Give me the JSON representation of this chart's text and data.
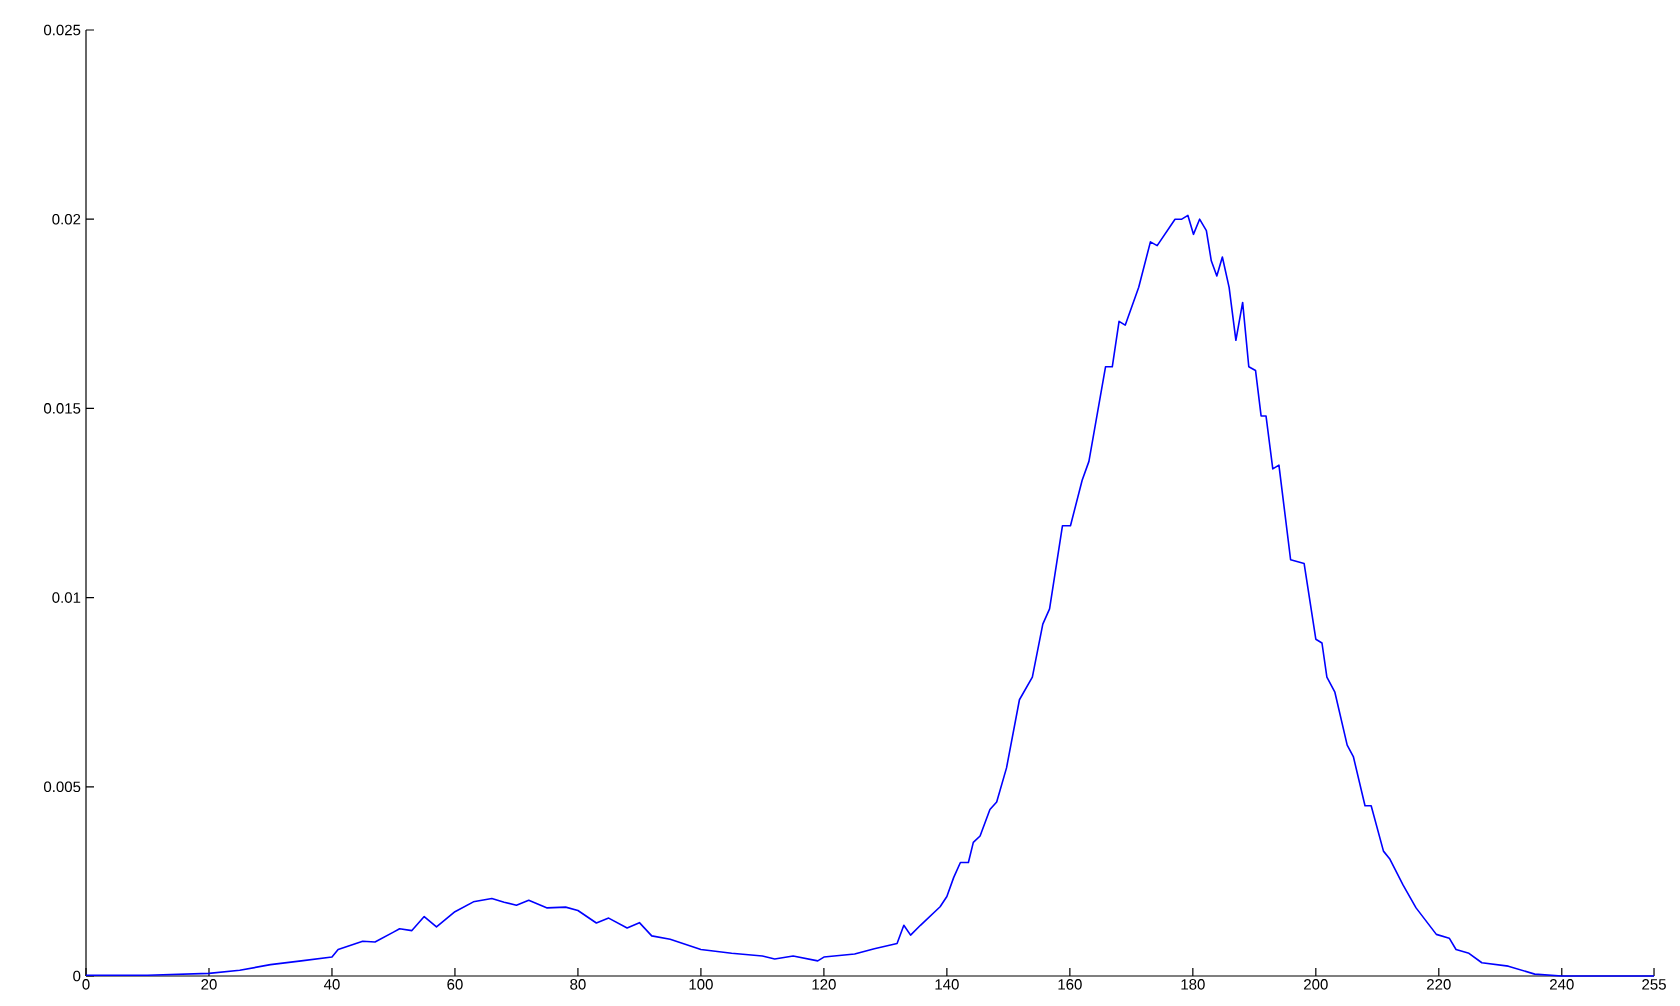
{
  "chart_data": {
    "type": "line",
    "x": [
      0,
      10,
      20,
      25,
      30,
      35,
      40,
      41,
      45,
      47,
      50,
      51,
      53,
      55,
      57,
      60,
      63,
      66,
      68,
      70,
      72,
      75,
      78,
      80,
      83,
      85,
      88,
      90,
      92,
      95,
      100,
      105,
      110,
      112,
      115,
      119,
      120,
      125,
      128.2,
      131.9,
      133,
      134.1,
      135.7,
      138.9,
      140,
      141.1,
      142.2,
      143.5,
      144.3,
      145.4,
      147,
      148.1,
      149.7,
      151.8,
      153.9,
      155.6,
      156.7,
      158.8,
      160.1,
      162,
      163.1,
      165.8,
      166.9,
      168,
      169,
      171.2,
      173.1,
      174.2,
      177.1,
      178.2,
      179.2,
      180.1,
      181.1,
      182.2,
      183,
      183.9,
      184.8,
      185.9,
      187,
      188.1,
      189.1,
      190.2,
      191.1,
      191.9,
      193,
      194,
      195.9,
      198.1,
      200,
      201,
      201.8,
      203.1,
      205.1,
      206.1,
      208,
      209,
      211,
      212,
      214.2,
      216.3,
      219.6,
      221.7,
      222.8,
      224.9,
      227,
      231.3,
      235.6,
      240,
      255
    ],
    "values": [
      2e-05,
      2e-05,
      7e-05,
      0.00015,
      0.0003,
      0.0004,
      0.0005,
      0.0007,
      0.00092,
      0.0009,
      0.00116,
      0.00125,
      0.0012,
      0.00157,
      0.0013,
      0.0017,
      0.00196,
      0.00205,
      0.00195,
      0.00187,
      0.002,
      0.0018,
      0.00182,
      0.00173,
      0.0014,
      0.00153,
      0.00127,
      0.00141,
      0.00106,
      0.00097,
      0.0007,
      0.0006,
      0.00053,
      0.00045,
      0.00053,
      0.0004,
      0.0005,
      0.00058,
      0.00072,
      0.00086,
      0.00134,
      0.00108,
      0.00134,
      0.00183,
      0.0021,
      0.0026,
      0.003,
      0.003,
      0.00353,
      0.0037,
      0.0044,
      0.0046,
      0.0055,
      0.0073,
      0.0079,
      0.0093,
      0.0097,
      0.0119,
      0.0119,
      0.0131,
      0.0136,
      0.0161,
      0.0161,
      0.0173,
      0.0172,
      0.0182,
      0.0194,
      0.0193,
      0.02,
      0.02,
      0.0201,
      0.0196,
      0.02,
      0.0197,
      0.0189,
      0.0185,
      0.019,
      0.0182,
      0.0168,
      0.0178,
      0.0161,
      0.016,
      0.0148,
      0.0148,
      0.0134,
      0.0135,
      0.011,
      0.0109,
      0.0089,
      0.0088,
      0.0079,
      0.0075,
      0.0061,
      0.0058,
      0.0045,
      0.0045,
      0.0033,
      0.0031,
      0.0024,
      0.0018,
      0.0011,
      0.001,
      0.0007,
      0.0006,
      0.00035,
      0.00026,
      5e-05,
      0,
      0
    ],
    "color": "#0000ff",
    "xlim": [
      0,
      255
    ],
    "ylim": [
      0,
      0.025
    ],
    "xticks": [
      0,
      20,
      40,
      60,
      80,
      100,
      120,
      140,
      160,
      180,
      200,
      220,
      240,
      255
    ],
    "yticks": [
      0,
      0.005,
      0.01,
      0.015,
      0.02,
      0.025
    ],
    "grid": false,
    "marker": "none",
    "line_style": "solid"
  }
}
